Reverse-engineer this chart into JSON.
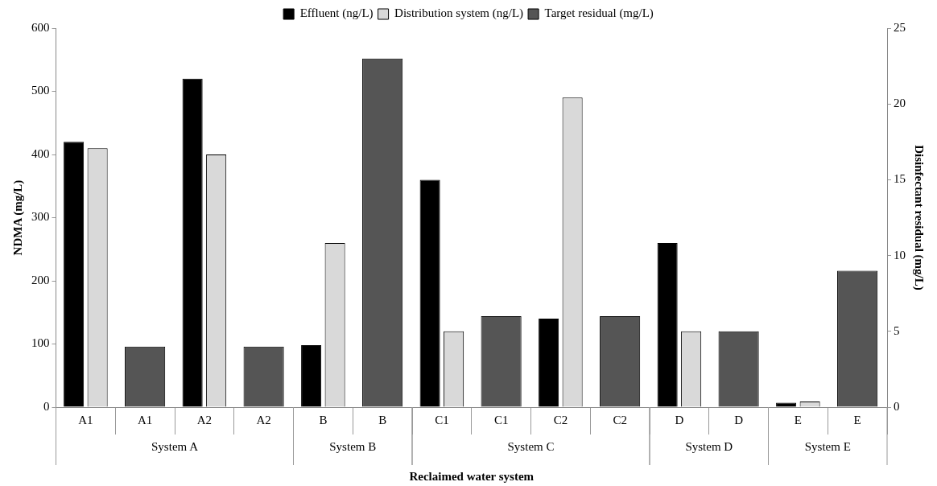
{
  "chart_data": {
    "type": "bar",
    "xlabel": "Reclaimed water system",
    "ylabel": "NDMA (mg/L)",
    "y2label": "Disinfectant residual (mg/L)",
    "categories": [
      "A1",
      "A1",
      "A2",
      "A2",
      "B",
      "B",
      "C1",
      "C1",
      "C2",
      "C2",
      "D",
      "D",
      "E",
      "E"
    ],
    "series": [
      {
        "name": "Effluent (ng/L)",
        "color": "#000000",
        "values": [
          420,
          null,
          520,
          null,
          98,
          null,
          360,
          null,
          140,
          null,
          260,
          null,
          7,
          null
        ]
      },
      {
        "name": "Distribution system (ng/L)",
        "color": "#d9d9d9",
        "values": [
          410,
          null,
          400,
          null,
          260,
          null,
          120,
          null,
          490,
          null,
          120,
          null,
          9,
          null
        ]
      },
      {
        "name": "Target residual (mg/L)",
        "color": "#555555",
        "axis": "y2",
        "values": [
          null,
          4,
          null,
          4,
          null,
          23,
          null,
          6,
          null,
          6,
          null,
          5,
          null,
          9
        ]
      }
    ],
    "ylim": [
      0,
      600
    ],
    "yticks": [
      0,
      100,
      200,
      300,
      400,
      500,
      600
    ],
    "y2lim": [
      0,
      25
    ],
    "y2ticks": [
      0,
      5,
      10,
      15,
      20,
      25
    ],
    "annotations": [
      "System A",
      "System B",
      "System C",
      "System D",
      "System E"
    ],
    "grid": false,
    "legend": "top"
  }
}
